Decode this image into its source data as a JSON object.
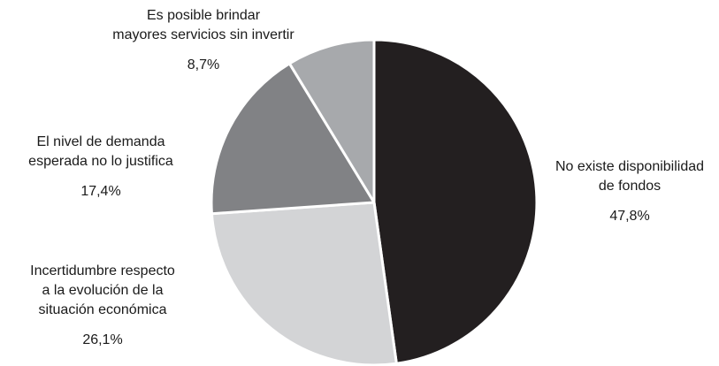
{
  "chart_data": {
    "type": "pie",
    "slices": [
      {
        "label_lines": [
          "No existe disponibilidad",
          "de fondos"
        ],
        "value": 47.8,
        "value_label": "47,8%",
        "color": "#231f20"
      },
      {
        "label_lines": [
          "Incertidumbre respecto",
          "a la evolución de la",
          "situación económica"
        ],
        "value": 26.1,
        "value_label": "26,1%",
        "color": "#d3d4d6"
      },
      {
        "label_lines": [
          "El nivel de demanda",
          "esperada no lo justifica"
        ],
        "value": 17.4,
        "value_label": "17,4%",
        "color": "#818285"
      },
      {
        "label_lines": [
          "Es posible brindar",
          "mayores servicios sin invertir"
        ],
        "value": 8.7,
        "value_label": "8,7%",
        "color": "#a7a9ac"
      }
    ],
    "start_angle_deg": 0,
    "direction": "clockwise",
    "legend": "none"
  }
}
